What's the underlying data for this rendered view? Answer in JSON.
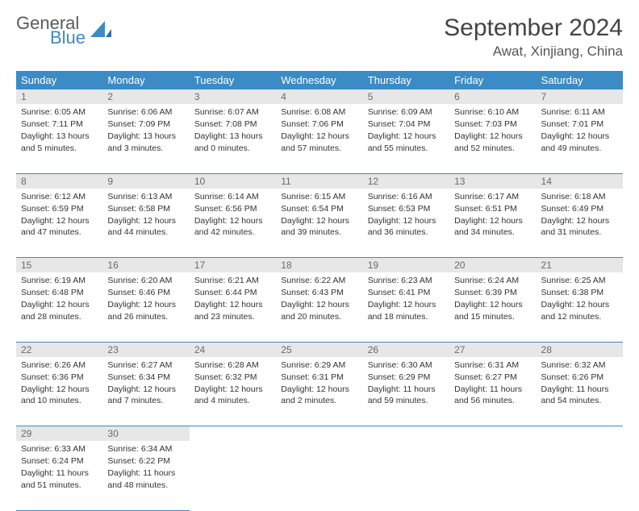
{
  "logo": {
    "general": "General",
    "blue": "Blue"
  },
  "title": "September 2024",
  "location": "Awat, Xinjiang, China",
  "colors": {
    "header_bg": "#3b8bc4",
    "header_fg": "#ffffff",
    "daynum_bg": "#e7e7e7",
    "daynum_fg": "#6a6a6a",
    "border": "#3b8bc4",
    "text": "#333333"
  },
  "weekdays": [
    "Sunday",
    "Monday",
    "Tuesday",
    "Wednesday",
    "Thursday",
    "Friday",
    "Saturday"
  ],
  "weeks": [
    [
      {
        "n": "1",
        "sr": "Sunrise: 6:05 AM",
        "ss": "Sunset: 7:11 PM",
        "dl": "Daylight: 13 hours and 5 minutes."
      },
      {
        "n": "2",
        "sr": "Sunrise: 6:06 AM",
        "ss": "Sunset: 7:09 PM",
        "dl": "Daylight: 13 hours and 3 minutes."
      },
      {
        "n": "3",
        "sr": "Sunrise: 6:07 AM",
        "ss": "Sunset: 7:08 PM",
        "dl": "Daylight: 13 hours and 0 minutes."
      },
      {
        "n": "4",
        "sr": "Sunrise: 6:08 AM",
        "ss": "Sunset: 7:06 PM",
        "dl": "Daylight: 12 hours and 57 minutes."
      },
      {
        "n": "5",
        "sr": "Sunrise: 6:09 AM",
        "ss": "Sunset: 7:04 PM",
        "dl": "Daylight: 12 hours and 55 minutes."
      },
      {
        "n": "6",
        "sr": "Sunrise: 6:10 AM",
        "ss": "Sunset: 7:03 PM",
        "dl": "Daylight: 12 hours and 52 minutes."
      },
      {
        "n": "7",
        "sr": "Sunrise: 6:11 AM",
        "ss": "Sunset: 7:01 PM",
        "dl": "Daylight: 12 hours and 49 minutes."
      }
    ],
    [
      {
        "n": "8",
        "sr": "Sunrise: 6:12 AM",
        "ss": "Sunset: 6:59 PM",
        "dl": "Daylight: 12 hours and 47 minutes."
      },
      {
        "n": "9",
        "sr": "Sunrise: 6:13 AM",
        "ss": "Sunset: 6:58 PM",
        "dl": "Daylight: 12 hours and 44 minutes."
      },
      {
        "n": "10",
        "sr": "Sunrise: 6:14 AM",
        "ss": "Sunset: 6:56 PM",
        "dl": "Daylight: 12 hours and 42 minutes."
      },
      {
        "n": "11",
        "sr": "Sunrise: 6:15 AM",
        "ss": "Sunset: 6:54 PM",
        "dl": "Daylight: 12 hours and 39 minutes."
      },
      {
        "n": "12",
        "sr": "Sunrise: 6:16 AM",
        "ss": "Sunset: 6:53 PM",
        "dl": "Daylight: 12 hours and 36 minutes."
      },
      {
        "n": "13",
        "sr": "Sunrise: 6:17 AM",
        "ss": "Sunset: 6:51 PM",
        "dl": "Daylight: 12 hours and 34 minutes."
      },
      {
        "n": "14",
        "sr": "Sunrise: 6:18 AM",
        "ss": "Sunset: 6:49 PM",
        "dl": "Daylight: 12 hours and 31 minutes."
      }
    ],
    [
      {
        "n": "15",
        "sr": "Sunrise: 6:19 AM",
        "ss": "Sunset: 6:48 PM",
        "dl": "Daylight: 12 hours and 28 minutes."
      },
      {
        "n": "16",
        "sr": "Sunrise: 6:20 AM",
        "ss": "Sunset: 6:46 PM",
        "dl": "Daylight: 12 hours and 26 minutes."
      },
      {
        "n": "17",
        "sr": "Sunrise: 6:21 AM",
        "ss": "Sunset: 6:44 PM",
        "dl": "Daylight: 12 hours and 23 minutes."
      },
      {
        "n": "18",
        "sr": "Sunrise: 6:22 AM",
        "ss": "Sunset: 6:43 PM",
        "dl": "Daylight: 12 hours and 20 minutes."
      },
      {
        "n": "19",
        "sr": "Sunrise: 6:23 AM",
        "ss": "Sunset: 6:41 PM",
        "dl": "Daylight: 12 hours and 18 minutes."
      },
      {
        "n": "20",
        "sr": "Sunrise: 6:24 AM",
        "ss": "Sunset: 6:39 PM",
        "dl": "Daylight: 12 hours and 15 minutes."
      },
      {
        "n": "21",
        "sr": "Sunrise: 6:25 AM",
        "ss": "Sunset: 6:38 PM",
        "dl": "Daylight: 12 hours and 12 minutes."
      }
    ],
    [
      {
        "n": "22",
        "sr": "Sunrise: 6:26 AM",
        "ss": "Sunset: 6:36 PM",
        "dl": "Daylight: 12 hours and 10 minutes."
      },
      {
        "n": "23",
        "sr": "Sunrise: 6:27 AM",
        "ss": "Sunset: 6:34 PM",
        "dl": "Daylight: 12 hours and 7 minutes."
      },
      {
        "n": "24",
        "sr": "Sunrise: 6:28 AM",
        "ss": "Sunset: 6:32 PM",
        "dl": "Daylight: 12 hours and 4 minutes."
      },
      {
        "n": "25",
        "sr": "Sunrise: 6:29 AM",
        "ss": "Sunset: 6:31 PM",
        "dl": "Daylight: 12 hours and 2 minutes."
      },
      {
        "n": "26",
        "sr": "Sunrise: 6:30 AM",
        "ss": "Sunset: 6:29 PM",
        "dl": "Daylight: 11 hours and 59 minutes."
      },
      {
        "n": "27",
        "sr": "Sunrise: 6:31 AM",
        "ss": "Sunset: 6:27 PM",
        "dl": "Daylight: 11 hours and 56 minutes."
      },
      {
        "n": "28",
        "sr": "Sunrise: 6:32 AM",
        "ss": "Sunset: 6:26 PM",
        "dl": "Daylight: 11 hours and 54 minutes."
      }
    ],
    [
      {
        "n": "29",
        "sr": "Sunrise: 6:33 AM",
        "ss": "Sunset: 6:24 PM",
        "dl": "Daylight: 11 hours and 51 minutes."
      },
      {
        "n": "30",
        "sr": "Sunrise: 6:34 AM",
        "ss": "Sunset: 6:22 PM",
        "dl": "Daylight: 11 hours and 48 minutes."
      },
      null,
      null,
      null,
      null,
      null
    ]
  ]
}
